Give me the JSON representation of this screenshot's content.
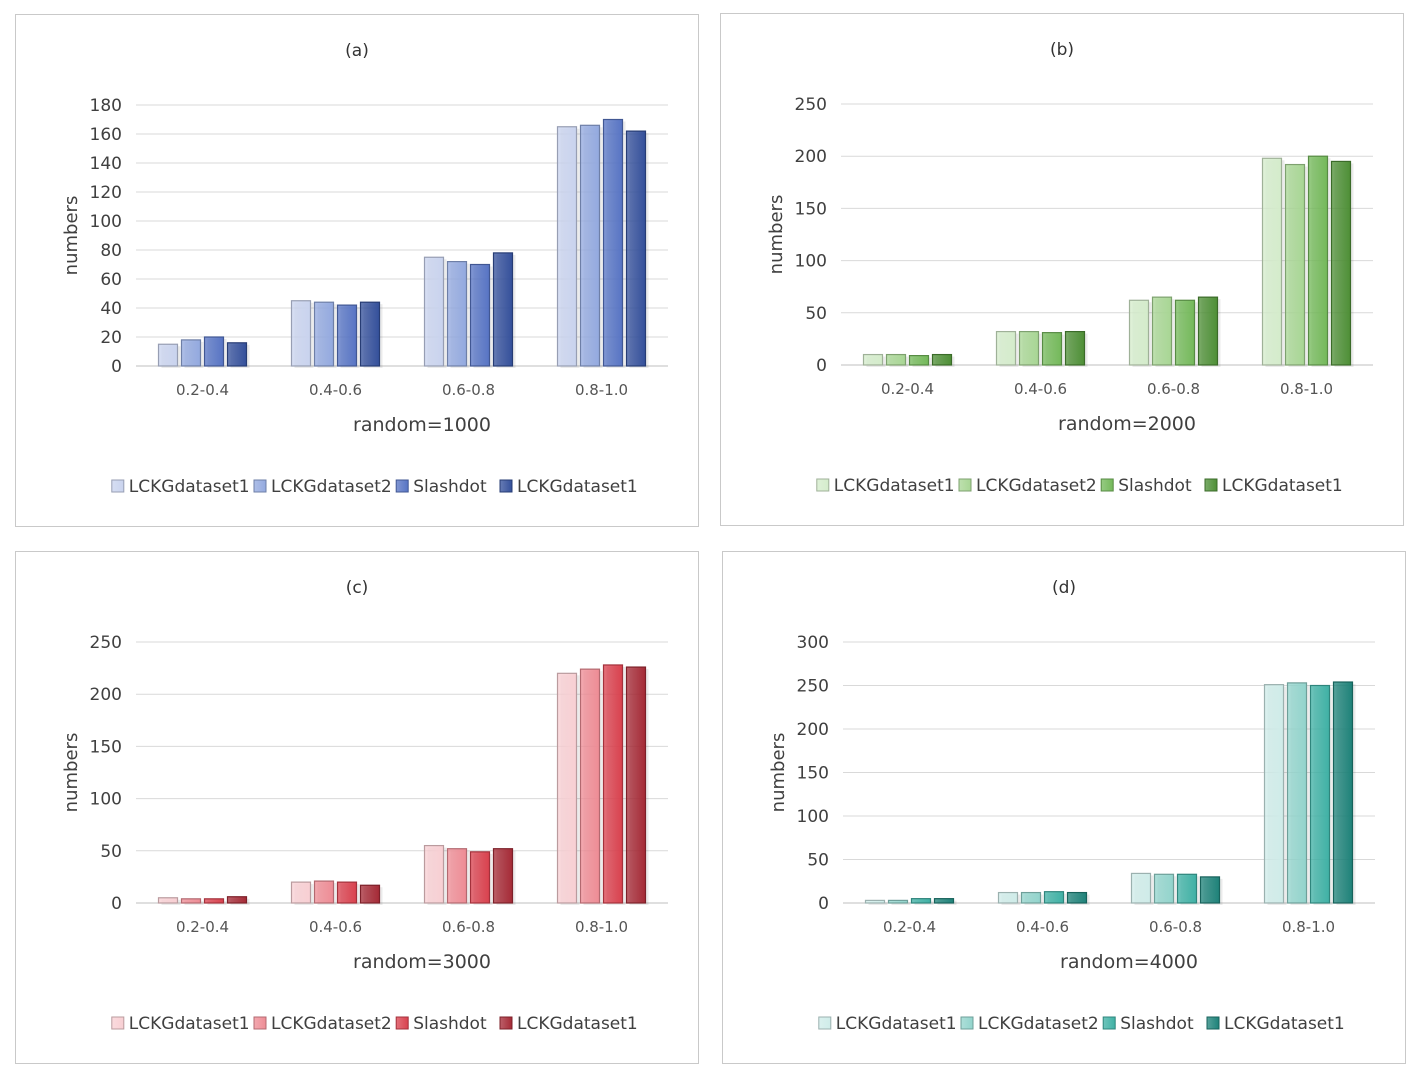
{
  "chart_data": [
    {
      "type": "bar",
      "title": "(a)",
      "xlabel": "random=1000",
      "ylabel": "numbers",
      "ylim": [
        0,
        180
      ],
      "yticks": [
        0,
        20,
        40,
        60,
        80,
        100,
        120,
        140,
        160,
        180
      ],
      "categories": [
        "0.2-0.4",
        "0.4-0.6",
        "0.6-0.8",
        "0.8-1.0"
      ],
      "legend_position": "bottom",
      "grid": true,
      "series": [
        {
          "name": "LCKGdataset1",
          "values": [
            15,
            45,
            75,
            165
          ],
          "color": "#c9d3ee"
        },
        {
          "name": "LCKGdataset2",
          "values": [
            18,
            44,
            72,
            166
          ],
          "color": "#93a9df"
        },
        {
          "name": "Slashdot",
          "values": [
            20,
            42,
            70,
            170
          ],
          "color": "#5774c4"
        },
        {
          "name": "LCKGdataset1",
          "values": [
            16,
            44,
            78,
            162
          ],
          "color": "#34509b"
        }
      ]
    },
    {
      "type": "bar",
      "title": "(b)",
      "xlabel": "random=2000",
      "ylabel": "numbers",
      "ylim": [
        0,
        250
      ],
      "yticks": [
        0,
        50,
        100,
        150,
        200,
        250
      ],
      "categories": [
        "0.2-0.4",
        "0.4-0.6",
        "0.6-0.8",
        "0.8-1.0"
      ],
      "legend_position": "bottom",
      "grid": true,
      "series": [
        {
          "name": "LCKGdataset1",
          "values": [
            10,
            32,
            62,
            198
          ],
          "color": "#d4eccb"
        },
        {
          "name": "LCKGdataset2",
          "values": [
            10,
            32,
            65,
            192
          ],
          "color": "#a8d694"
        },
        {
          "name": "Slashdot",
          "values": [
            9,
            31,
            62,
            200
          ],
          "color": "#74b95a"
        },
        {
          "name": "LCKGdataset1",
          "values": [
            10,
            32,
            65,
            195
          ],
          "color": "#4e8f36"
        }
      ]
    },
    {
      "type": "bar",
      "title": "(c)",
      "xlabel": "random=3000",
      "ylabel": "numbers",
      "ylim": [
        0,
        250
      ],
      "yticks": [
        0,
        50,
        100,
        150,
        200,
        250
      ],
      "categories": [
        "0.2-0.4",
        "0.4-0.6",
        "0.6-0.8",
        "0.8-1.0"
      ],
      "legend_position": "bottom",
      "grid": true,
      "series": [
        {
          "name": "LCKGdataset1",
          "values": [
            5,
            20,
            55,
            220
          ],
          "color": "#f8cfd3"
        },
        {
          "name": "LCKGdataset2",
          "values": [
            4,
            21,
            52,
            224
          ],
          "color": "#ee8c95"
        },
        {
          "name": "Slashdot",
          "values": [
            4,
            20,
            49,
            228
          ],
          "color": "#d9414e"
        },
        {
          "name": "LCKGdataset1",
          "values": [
            6,
            17,
            52,
            226
          ],
          "color": "#a52a36"
        }
      ]
    },
    {
      "type": "bar",
      "title": "(d)",
      "xlabel": "random=4000",
      "ylabel": "numbers",
      "ylim": [
        0,
        300
      ],
      "yticks": [
        0,
        50,
        100,
        150,
        200,
        250,
        300
      ],
      "categories": [
        "0.2-0.4",
        "0.4-0.6",
        "0.6-0.8",
        "0.8-1.0"
      ],
      "legend_position": "bottom",
      "grid": true,
      "series": [
        {
          "name": "LCKGdataset1",
          "values": [
            3,
            12,
            34,
            251
          ],
          "color": "#cfece9"
        },
        {
          "name": "LCKGdataset2",
          "values": [
            3,
            12,
            33,
            253
          ],
          "color": "#92d4cc"
        },
        {
          "name": "Slashdot",
          "values": [
            5,
            13,
            33,
            250
          ],
          "color": "#3fb1a5"
        },
        {
          "name": "LCKGdataset1",
          "values": [
            5,
            12,
            30,
            254
          ],
          "color": "#1e8279"
        }
      ]
    }
  ]
}
